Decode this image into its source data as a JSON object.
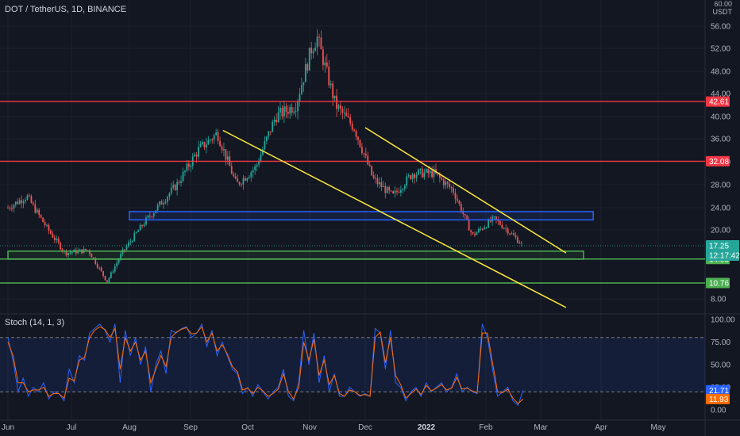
{
  "header": {
    "title": "DOT / TetherUS, 1D, BINANCE",
    "currency": "USDT",
    "top_tick": "60.00"
  },
  "colors": {
    "background": "#131722",
    "up": "#26a69a",
    "down": "#ef5350",
    "resistance": "#f23645",
    "support": "#4caf50",
    "zone_blue": "#2962ff",
    "trendline": "#ffeb3b",
    "stoch_k": "#2962ff",
    "stoch_d": "#ff6d00"
  },
  "chart_data": [
    {
      "type": "candlestick",
      "title": "DOT / TetherUS, 1D, BINANCE",
      "y_axis": {
        "ticks": [
          "56.00",
          "52.00",
          "48.00",
          "44.00",
          "40.00",
          "36.00",
          "32.00",
          "28.00",
          "24.00",
          "20.00",
          "8.00"
        ],
        "unit": "USDT"
      },
      "x_axis": {
        "ticks": [
          "Jun",
          "Jul",
          "Aug",
          "Sep",
          "Oct",
          "Nov",
          "Dec",
          "2022",
          "Feb",
          "Mar",
          "Apr",
          "May"
        ]
      },
      "price_path": [
        [
          "Jun 1",
          24
        ],
        [
          "Jun 10",
          26
        ],
        [
          "Jun 20",
          20
        ],
        [
          "Jun 28",
          16
        ],
        [
          "Jul 10",
          16.5
        ],
        [
          "Jul 20",
          11
        ],
        [
          "Jul 28",
          16
        ],
        [
          "Aug 10",
          22
        ],
        [
          "Aug 25",
          28
        ],
        [
          "Sep 5",
          34
        ],
        [
          "Sep 15",
          37
        ],
        [
          "Sep 25",
          28
        ],
        [
          "Oct 5",
          31
        ],
        [
          "Oct 15",
          40
        ],
        [
          "Oct 25",
          42
        ],
        [
          "Nov 2",
          52
        ],
        [
          "Nov 5",
          54
        ],
        [
          "Nov 15",
          42
        ],
        [
          "Nov 25",
          38
        ],
        [
          "Dec 5",
          29
        ],
        [
          "Dec 15",
          26
        ],
        [
          "Dec 25",
          30
        ],
        [
          "Jan 5",
          30
        ],
        [
          "Jan 15",
          27
        ],
        [
          "Jan 25",
          19
        ],
        [
          "Feb 5",
          22
        ],
        [
          "Feb 12",
          20
        ],
        [
          "Feb 20",
          17.25
        ]
      ],
      "horizontal_levels": [
        {
          "value": 42.61,
          "label": "42.61",
          "kind": "resistance"
        },
        {
          "value": 32.08,
          "label": "32.08",
          "kind": "resistance"
        },
        {
          "value": 14.93,
          "label": "14.93",
          "kind": "support"
        },
        {
          "value": 10.76,
          "label": "10.76",
          "kind": "support"
        }
      ],
      "zones": [
        {
          "kind": "blue",
          "low": 21.8,
          "high": 23.3,
          "from": "Aug 1",
          "to": "Mar 28"
        },
        {
          "kind": "green",
          "low": 14.9,
          "high": 16.3,
          "from": "Jun 1",
          "to": "Mar 23"
        }
      ],
      "trendlines": [
        {
          "from": [
            "Sep 18",
            37.5
          ],
          "to": [
            "Mar 14",
            6.5
          ]
        },
        {
          "from": [
            "Dec 1",
            38
          ],
          "to": [
            "Mar 14",
            16
          ]
        }
      ],
      "last_price": {
        "value": 17.25,
        "label": "17.25",
        "countdown": "12:17:42"
      }
    },
    {
      "type": "line",
      "title": "Stoch (14, 1, 3)",
      "y_axis": {
        "ticks": [
          "100.00",
          "75.00",
          "50.00",
          "25.00",
          "0.00"
        ],
        "ylim": [
          0,
          100
        ]
      },
      "bands": [
        80,
        20
      ],
      "series": [
        {
          "kind": "k",
          "last": "21.71",
          "values": [
            80,
            55,
            20,
            35,
            15,
            25,
            20,
            30,
            12,
            20,
            18,
            10,
            45,
            30,
            60,
            55,
            85,
            90,
            95,
            88,
            75,
            95,
            30,
            88,
            60,
            80,
            50,
            70,
            20,
            50,
            65,
            40,
            88,
            85,
            90,
            92,
            80,
            85,
            95,
            70,
            88,
            60,
            75,
            60,
            45,
            40,
            18,
            25,
            15,
            28,
            20,
            12,
            20,
            25,
            45,
            15,
            10,
            30,
            88,
            50,
            85,
            30,
            60,
            20,
            40,
            15,
            15,
            25,
            20,
            15,
            18,
            15,
            90,
            85,
            45,
            88,
            30,
            25,
            10,
            20,
            25,
            15,
            30,
            20,
            25,
            30,
            20,
            25,
            40,
            20,
            25,
            20,
            18,
            95,
            80,
            45,
            15,
            20,
            25,
            10,
            5,
            21.71
          ]
        },
        {
          "kind": "d",
          "last": "11.93",
          "values": [
            75,
            60,
            30,
            30,
            20,
            22,
            22,
            25,
            15,
            18,
            18,
            13,
            35,
            32,
            55,
            58,
            80,
            88,
            92,
            89,
            80,
            90,
            45,
            80,
            65,
            75,
            55,
            65,
            30,
            45,
            60,
            48,
            80,
            86,
            89,
            91,
            84,
            85,
            92,
            75,
            85,
            65,
            72,
            62,
            48,
            42,
            22,
            24,
            18,
            25,
            21,
            15,
            18,
            23,
            40,
            20,
            12,
            25,
            75,
            55,
            78,
            38,
            55,
            28,
            38,
            18,
            15,
            22,
            20,
            16,
            17,
            15,
            80,
            86,
            52,
            80,
            38,
            28,
            13,
            18,
            23,
            17,
            27,
            21,
            24,
            28,
            22,
            24,
            36,
            23,
            24,
            21,
            19,
            85,
            85,
            52,
            20,
            19,
            23,
            13,
            7,
            11.93
          ]
        }
      ]
    }
  ]
}
